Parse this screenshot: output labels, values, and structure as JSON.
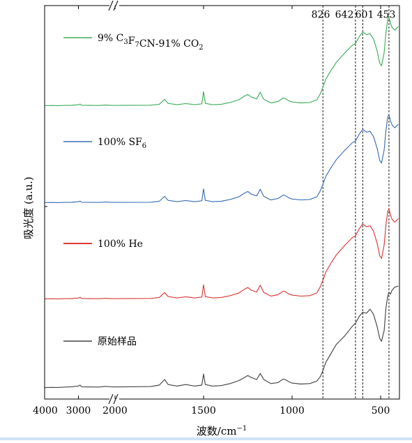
{
  "chart_data": {
    "type": "line",
    "xlabel": "波数/cm⁻¹",
    "xlabel_parts": {
      "main": "波数/cm",
      "sup": "−1"
    },
    "ylabel": "吸光度 (a.u.)",
    "x_axis": {
      "reversed": true,
      "broken": true,
      "break_range": [
        2000,
        2900
      ],
      "wide_range": [
        4000,
        2000
      ],
      "main_range": [
        2000,
        400
      ]
    },
    "x_ticks": [
      {
        "value": 4000,
        "label": "4000"
      },
      {
        "value": 3000,
        "label": "3000"
      },
      {
        "value": 2000,
        "label": "2000"
      },
      {
        "value": 1500,
        "label": "1500"
      },
      {
        "value": 1000,
        "label": "1000"
      },
      {
        "value": 500,
        "label": "500"
      }
    ],
    "reference_lines": [
      {
        "value": 826,
        "label": "826"
      },
      {
        "value": 642,
        "label": "642"
      },
      {
        "value": 601,
        "label": "601"
      },
      {
        "value": 453,
        "label": "453"
      }
    ],
    "grid": false,
    "series": [
      {
        "name": "9% C3F7CN-91% CO2",
        "legend_parts": [
          {
            "t": "9% C",
            "sub": false
          },
          {
            "t": "3",
            "sub": true
          },
          {
            "t": "F",
            "sub": false
          },
          {
            "t": "7",
            "sub": true
          },
          {
            "t": "CN-91% CO",
            "sub": false
          },
          {
            "t": "2",
            "sub": true
          }
        ],
        "color": "#3fae5a",
        "x": [
          4000,
          3800,
          3600,
          3400,
          3200,
          3100,
          3000,
          2950,
          2920,
          2900,
          2600,
          2400,
          2200,
          2050,
          2000,
          1800,
          1750,
          1720,
          1700,
          1650,
          1600,
          1550,
          1510,
          1500,
          1490,
          1450,
          1400,
          1350,
          1300,
          1270,
          1250,
          1230,
          1200,
          1180,
          1160,
          1120,
          1080,
          1050,
          1040,
          1020,
          1000,
          950,
          900,
          860,
          840,
          826,
          810,
          780,
          750,
          700,
          660,
          642,
          620,
          601,
          580,
          560,
          540,
          520,
          505,
          495,
          480,
          470,
          460,
          453,
          445,
          435,
          420,
          400
        ],
        "y": [
          0.5,
          0.6,
          0.5,
          0.7,
          0.8,
          1.2,
          1.4,
          2.2,
          1.2,
          0.9,
          0.7,
          0.6,
          1.1,
          0.8,
          0.7,
          0.9,
          2.0,
          7.5,
          3.0,
          1.5,
          2.8,
          1.5,
          2.5,
          16.0,
          3.0,
          1.5,
          2.0,
          4.0,
          7.0,
          11.0,
          13.0,
          10.0,
          8.0,
          15.5,
          7.5,
          3.5,
          5.0,
          9.0,
          8.5,
          6.0,
          4.5,
          3.5,
          4.0,
          7.0,
          14.0,
          21.0,
          30.0,
          40.0,
          49.0,
          60.0,
          68.0,
          70.0,
          78.0,
          83.0,
          80.0,
          81.0,
          75.0,
          62.0,
          48.0,
          45.0,
          60.0,
          82.0,
          97.0,
          100.0,
          93.0,
          88.0,
          85.0,
          89.0
        ]
      },
      {
        "name": "100% SF6",
        "legend_parts": [
          {
            "t": "100% SF",
            "sub": false
          },
          {
            "t": "6",
            "sub": true
          }
        ],
        "color": "#3c6fb6",
        "x": [
          4000,
          3800,
          3600,
          3400,
          3200,
          3100,
          3000,
          2950,
          2920,
          2900,
          2600,
          2400,
          2200,
          2050,
          2000,
          1800,
          1750,
          1720,
          1700,
          1650,
          1600,
          1550,
          1510,
          1500,
          1490,
          1450,
          1400,
          1350,
          1300,
          1270,
          1250,
          1230,
          1200,
          1180,
          1160,
          1120,
          1080,
          1050,
          1040,
          1020,
          1000,
          950,
          900,
          860,
          840,
          826,
          810,
          780,
          750,
          700,
          660,
          642,
          620,
          601,
          580,
          560,
          540,
          520,
          505,
          495,
          480,
          470,
          460,
          453,
          445,
          435,
          420,
          400
        ],
        "y": [
          0.5,
          0.6,
          0.5,
          0.7,
          0.8,
          1.2,
          1.4,
          2.2,
          1.2,
          0.9,
          0.7,
          0.6,
          1.1,
          0.8,
          0.7,
          0.9,
          2.0,
          7.5,
          3.0,
          1.5,
          2.8,
          1.5,
          2.5,
          16.0,
          3.0,
          1.5,
          2.0,
          4.0,
          7.0,
          11.0,
          13.0,
          10.0,
          8.0,
          15.5,
          7.5,
          3.5,
          5.0,
          9.0,
          8.5,
          6.0,
          4.5,
          3.5,
          4.0,
          7.0,
          14.0,
          21.0,
          30.0,
          40.0,
          49.0,
          60.0,
          68.0,
          70.0,
          78.0,
          83.0,
          80.0,
          81.0,
          75.0,
          62.0,
          48.0,
          45.0,
          60.0,
          82.0,
          97.0,
          100.0,
          93.0,
          88.0,
          85.0,
          89.0
        ]
      },
      {
        "name": "100% He",
        "legend_parts": [
          {
            "t": "100% He",
            "sub": false
          }
        ],
        "color": "#d93a35",
        "x": [
          4000,
          3800,
          3600,
          3400,
          3200,
          3100,
          3000,
          2950,
          2920,
          2900,
          2600,
          2400,
          2200,
          2050,
          2000,
          1800,
          1750,
          1720,
          1700,
          1650,
          1600,
          1550,
          1510,
          1500,
          1490,
          1450,
          1400,
          1350,
          1300,
          1270,
          1250,
          1230,
          1200,
          1180,
          1160,
          1120,
          1080,
          1050,
          1040,
          1020,
          1000,
          950,
          900,
          860,
          840,
          826,
          810,
          780,
          750,
          700,
          660,
          642,
          620,
          601,
          580,
          560,
          540,
          520,
          505,
          495,
          480,
          470,
          460,
          453,
          445,
          435,
          420,
          400
        ],
        "y": [
          0.5,
          0.6,
          0.5,
          0.7,
          0.8,
          1.2,
          1.4,
          2.2,
          1.2,
          0.9,
          0.7,
          0.6,
          1.1,
          0.8,
          0.7,
          0.9,
          2.0,
          7.5,
          3.0,
          1.5,
          2.8,
          1.5,
          2.5,
          16.0,
          3.0,
          1.5,
          2.0,
          4.0,
          7.0,
          11.0,
          13.0,
          10.0,
          8.0,
          15.5,
          7.5,
          3.5,
          5.0,
          9.0,
          8.5,
          6.0,
          4.5,
          3.5,
          4.0,
          7.0,
          14.0,
          21.0,
          30.0,
          40.0,
          49.0,
          60.0,
          68.0,
          70.0,
          78.0,
          83.0,
          80.0,
          81.0,
          75.0,
          62.0,
          48.0,
          45.0,
          60.0,
          82.0,
          97.0,
          100.0,
          93.0,
          88.0,
          85.0,
          89.0
        ]
      },
      {
        "name": "原始样品",
        "legend_parts": [
          {
            "t": "原始样品",
            "sub": false
          }
        ],
        "color": "#444444",
        "x": [
          4000,
          3800,
          3600,
          3400,
          3200,
          3100,
          3000,
          2950,
          2920,
          2900,
          2600,
          2400,
          2200,
          2050,
          2000,
          1800,
          1750,
          1720,
          1700,
          1650,
          1600,
          1550,
          1510,
          1500,
          1490,
          1450,
          1400,
          1350,
          1300,
          1270,
          1250,
          1230,
          1200,
          1180,
          1160,
          1120,
          1080,
          1050,
          1040,
          1020,
          1000,
          950,
          900,
          860,
          840,
          826,
          810,
          780,
          750,
          700,
          660,
          642,
          620,
          601,
          580,
          560,
          540,
          520,
          505,
          495,
          480,
          470,
          460,
          453,
          445,
          435,
          420,
          400
        ],
        "y": [
          1.0,
          1.2,
          1.1,
          1.5,
          1.8,
          2.2,
          2.6,
          3.5,
          2.2,
          1.8,
          1.6,
          1.5,
          2.2,
          1.8,
          1.6,
          2.0,
          3.5,
          9.0,
          4.0,
          2.5,
          4.0,
          2.5,
          3.5,
          14.5,
          4.0,
          2.5,
          3.0,
          5.0,
          8.0,
          11.0,
          13.0,
          11.0,
          9.0,
          15.0,
          9.0,
          5.0,
          6.0,
          9.5,
          9.0,
          7.0,
          5.5,
          4.5,
          5.0,
          7.5,
          12.0,
          18.0,
          26.0,
          35.0,
          44.0,
          53.0,
          62.0,
          65.0,
          72.0,
          76.0,
          75.0,
          79.0,
          74.0,
          62.0,
          50.0,
          47.0,
          58.0,
          80.0,
          92.0,
          96.0,
          94.0,
          98.0,
          101.0,
          102.0
        ]
      }
    ]
  }
}
